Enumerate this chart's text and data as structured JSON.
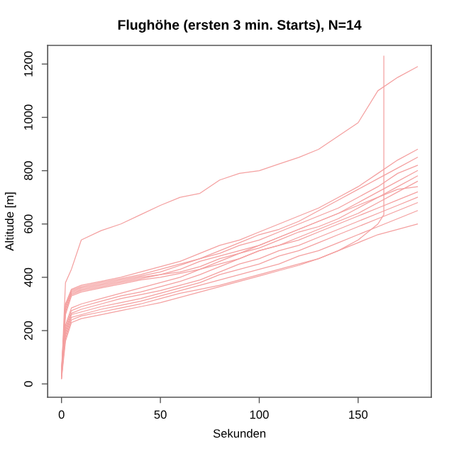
{
  "chart_data": {
    "type": "line",
    "title": "Flughöhe (ersten 3 min. Starts), N=14",
    "xlabel": "Sekunden",
    "ylabel": "Altitude [m]",
    "x": [
      0,
      2,
      5,
      10,
      20,
      30,
      40,
      50,
      60,
      70,
      80,
      90,
      100,
      110,
      120,
      130,
      140,
      150,
      160,
      170,
      180
    ],
    "xlim": [
      -7,
      187
    ],
    "ylim": [
      -50,
      1270
    ],
    "xticks": [
      0,
      50,
      100,
      150
    ],
    "yticks": [
      0,
      200,
      400,
      600,
      800,
      1000,
      1200
    ],
    "grid": false,
    "marker": "none",
    "line_style": "solid",
    "series": [
      {
        "color": "#f4a0a0",
        "values": [
          30,
          380,
          430,
          540,
          575,
          600,
          635,
          670,
          700,
          715,
          765,
          790,
          800,
          825,
          850,
          880,
          930,
          980,
          1100,
          1150,
          1190
        ]
      },
      {
        "color": "#f4a0a0",
        "values": [
          40,
          300,
          355,
          370,
          385,
          400,
          420,
          440,
          460,
          490,
          520,
          540,
          570,
          600,
          630,
          660,
          700,
          740,
          790,
          840,
          880
        ]
      },
      {
        "color": "#f4a0a0",
        "values": [
          30,
          290,
          350,
          365,
          380,
          395,
          410,
          430,
          450,
          470,
          500,
          530,
          560,
          580,
          610,
          650,
          690,
          730,
          770,
          810,
          850
        ]
      },
      {
        "color": "#f4a0a0",
        "values": [
          50,
          280,
          345,
          360,
          375,
          390,
          405,
          420,
          445,
          470,
          490,
          520,
          540,
          570,
          600,
          630,
          660,
          700,
          740,
          790,
          820
        ]
      },
      {
        "color": "#f4a0a0",
        "values": [
          20,
          270,
          340,
          355,
          370,
          385,
          400,
          410,
          430,
          460,
          480,
          500,
          520,
          550,
          580,
          610,
          640,
          680,
          720,
          760,
          800
        ]
      },
      {
        "color": "#f4a0a0",
        "values": [
          60,
          300,
          335,
          350,
          365,
          380,
          395,
          410,
          420,
          440,
          470,
          490,
          510,
          540,
          570,
          590,
          620,
          660,
          700,
          740,
          780
        ]
      },
      {
        "color": "#f4a0a0",
        "values": [
          30,
          260,
          330,
          345,
          360,
          375,
          390,
          400,
          415,
          430,
          450,
          470,
          500,
          520,
          550,
          580,
          610,
          640,
          680,
          720,
          760
        ]
      },
      {
        "color": "#f4a0a0",
        "values": [
          40,
          220,
          285,
          300,
          320,
          340,
          360,
          380,
          400,
          430,
          460,
          490,
          520,
          550,
          580,
          610,
          640,
          670,
          700,
          730,
          740
        ]
      },
      {
        "color": "#f4a0a0",
        "values": [
          30,
          210,
          275,
          290,
          310,
          330,
          345,
          365,
          385,
          410,
          440,
          470,
          500,
          520,
          540,
          570,
          600,
          630,
          660,
          690,
          720
        ]
      },
      {
        "color": "#f4a0a0",
        "values": [
          20,
          200,
          265,
          280,
          300,
          320,
          335,
          350,
          370,
          390,
          420,
          450,
          470,
          500,
          520,
          550,
          580,
          610,
          640,
          670,
          700
        ]
      },
      {
        "color": "#f4a0a0",
        "values": [
          50,
          190,
          260,
          270,
          290,
          305,
          320,
          340,
          360,
          380,
          410,
          430,
          450,
          480,
          500,
          530,
          560,
          590,
          620,
          650,
          680
        ]
      },
      {
        "color": "#f4a0a0",
        "values": [
          30,
          180,
          250,
          260,
          280,
          295,
          310,
          330,
          350,
          370,
          390,
          410,
          430,
          450,
          480,
          500,
          530,
          560,
          590,
          620,
          650
        ]
      },
      {
        "color": "#f4a0a0",
        "values": [
          40,
          170,
          240,
          255,
          270,
          285,
          300,
          320,
          340,
          355,
          370,
          390,
          410,
          430,
          450,
          470,
          500,
          530,
          560,
          580,
          600
        ]
      },
      {
        "color": "#f4a0a0",
        "x": [
          0,
          2,
          5,
          10,
          20,
          30,
          40,
          50,
          60,
          70,
          80,
          90,
          100,
          110,
          120,
          130,
          140,
          150,
          160,
          163,
          163
        ],
        "values": [
          20,
          160,
          230,
          245,
          260,
          275,
          290,
          305,
          325,
          345,
          365,
          385,
          405,
          425,
          445,
          470,
          500,
          540,
          600,
          635,
          1230
        ]
      }
    ]
  }
}
